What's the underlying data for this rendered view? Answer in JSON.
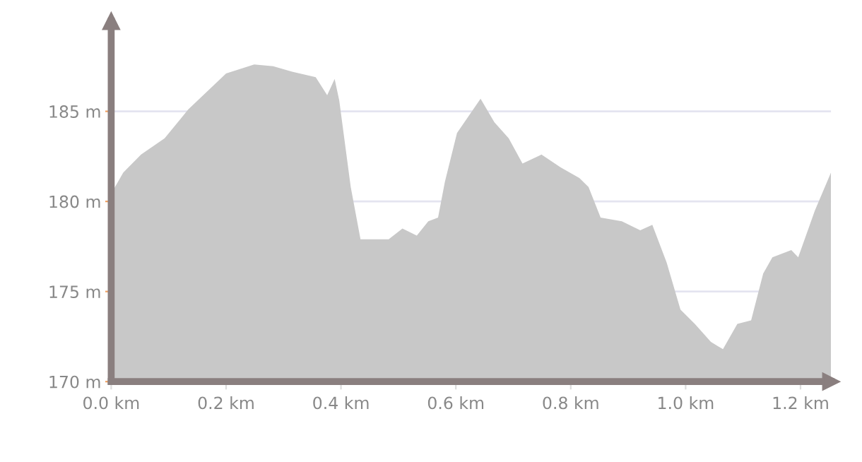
{
  "chart_data": {
    "type": "area",
    "x": [
      0.003,
      0.021,
      0.052,
      0.093,
      0.134,
      0.167,
      0.2,
      0.249,
      0.282,
      0.315,
      0.356,
      0.376,
      0.389,
      0.397,
      0.417,
      0.434,
      0.483,
      0.507,
      0.532,
      0.552,
      0.569,
      0.581,
      0.602,
      0.643,
      0.667,
      0.692,
      0.716,
      0.749,
      0.782,
      0.815,
      0.831,
      0.852,
      0.889,
      0.921,
      0.942,
      0.967,
      0.991,
      1.016,
      1.044,
      1.065,
      1.09,
      1.114,
      1.135,
      1.151,
      1.184,
      1.196,
      1.225,
      1.253
    ],
    "series": [
      {
        "color": "#c8c8c8",
        "values": [
          180.6,
          181.6,
          182.6,
          183.5,
          185.1,
          186.1,
          187.1,
          187.6,
          187.5,
          187.2,
          186.9,
          185.9,
          186.8,
          185.6,
          180.8,
          177.9,
          177.9,
          178.5,
          178.1,
          178.9,
          179.1,
          181.1,
          183.8,
          185.7,
          184.4,
          183.5,
          182.1,
          182.6,
          181.9,
          181.3,
          180.8,
          179.1,
          178.9,
          178.4,
          178.7,
          176.6,
          174.0,
          173.2,
          172.2,
          171.8,
          173.2,
          173.4,
          176.0,
          176.9,
          177.3,
          176.9,
          179.5,
          181.6
        ]
      }
    ],
    "xlim": [
      0,
      1.253
    ],
    "ylim": [
      170,
      190
    ],
    "xticks": [
      {
        "value": 0,
        "label": "0.0 km"
      },
      {
        "value": 0.2,
        "label": "0.2 km"
      },
      {
        "value": 0.4,
        "label": "0.4 km"
      },
      {
        "value": 0.6,
        "label": "0.6 km"
      },
      {
        "value": 0.8,
        "label": "0.8 km"
      },
      {
        "value": 1.0,
        "label": "1.0 km"
      },
      {
        "value": 1.2,
        "label": "1.2 km"
      }
    ],
    "yticks": [
      {
        "value": 170,
        "label": "170 m"
      },
      {
        "value": 175,
        "label": "175 m"
      },
      {
        "value": 180,
        "label": "180 m"
      },
      {
        "value": 185,
        "label": "185 m"
      }
    ],
    "grid": "y"
  }
}
